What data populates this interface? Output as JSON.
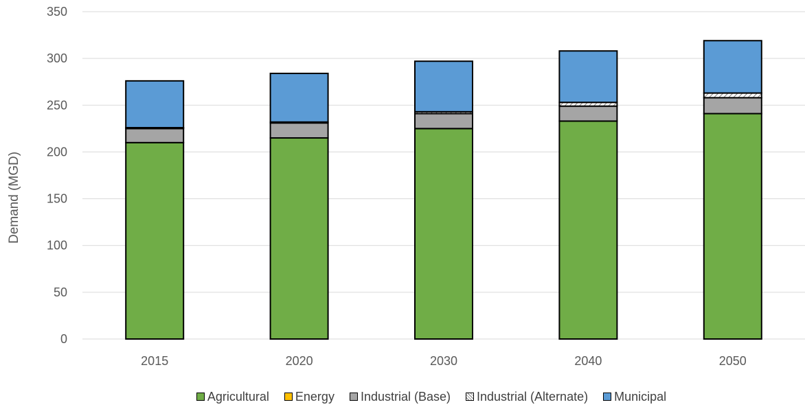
{
  "chart_data": {
    "type": "bar",
    "stacked": true,
    "title": "",
    "xlabel": "",
    "ylabel": "Demand (MGD)",
    "ylim": [
      0,
      350
    ],
    "yticks": [
      0,
      50,
      100,
      150,
      200,
      250,
      300,
      350
    ],
    "grid": true,
    "legend_position": "bottom",
    "categories": [
      "2015",
      "2020",
      "2030",
      "2040",
      "2050"
    ],
    "series": [
      {
        "name": "Agricultural",
        "color": "#70ad47",
        "pattern": "solid",
        "values": [
          210,
          215,
          225,
          233,
          241
        ]
      },
      {
        "name": "Energy",
        "color": "#ffc000",
        "pattern": "solid",
        "values": [
          0,
          0,
          0,
          0,
          0
        ]
      },
      {
        "name": "Industrial (Base)",
        "color": "#a5a5a5",
        "pattern": "solid",
        "values": [
          15,
          16,
          16,
          16,
          17
        ]
      },
      {
        "name": "Industrial (Alternate)",
        "color": "#ffffff",
        "pattern": "hatch",
        "values": [
          1,
          1,
          2,
          4,
          5
        ]
      },
      {
        "name": "Municipal",
        "color": "#5b9bd5",
        "pattern": "solid",
        "values": [
          50,
          52,
          54,
          55,
          56
        ]
      }
    ]
  }
}
